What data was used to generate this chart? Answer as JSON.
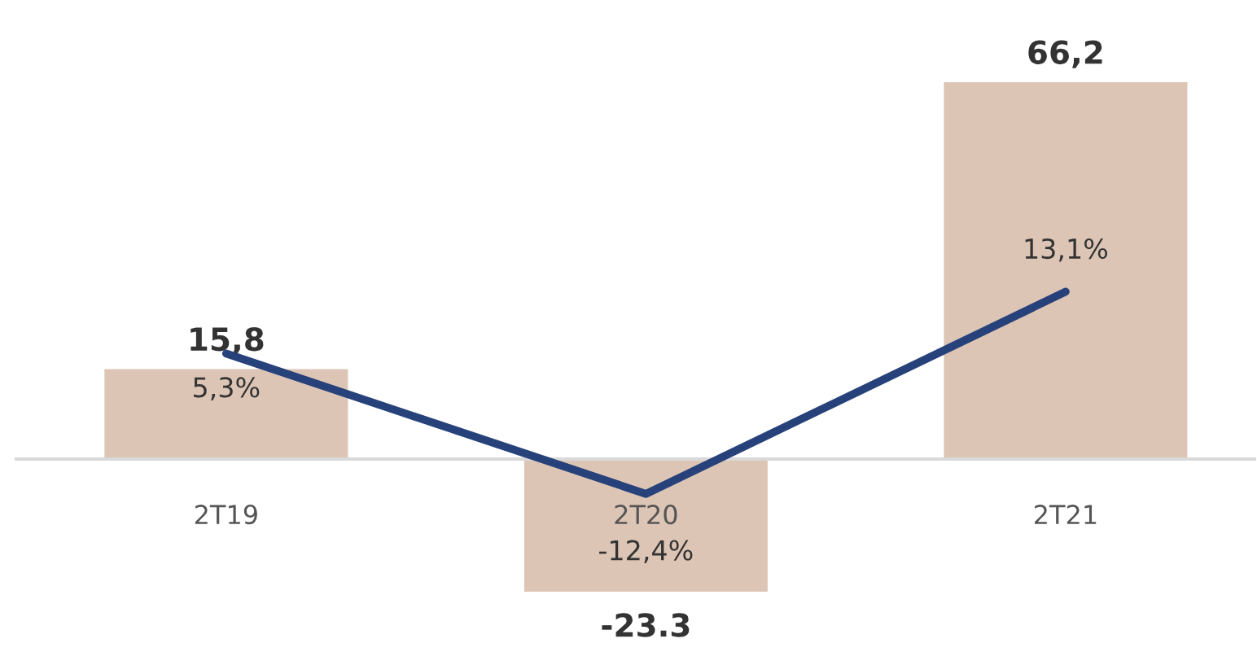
{
  "chart_data": {
    "type": "bar",
    "categories": [
      "2T19",
      "2T20",
      "2T21"
    ],
    "series": [
      {
        "color": "#dcc5b5",
        "values": [
          15.8,
          -23.3,
          66.2
        ],
        "value_labels": [
          "15,8",
          "-23.3",
          "66,2"
        ]
      },
      {
        "type": "line",
        "axis": "y2",
        "color": "#27417a",
        "values": [
          5.3,
          -12.4,
          13.1
        ],
        "value_labels": [
          "5,3%",
          "-12,4%",
          "13,1%"
        ],
        "marker": "none",
        "line_style": "solid"
      }
    ],
    "grid": false,
    "legend": false
  }
}
